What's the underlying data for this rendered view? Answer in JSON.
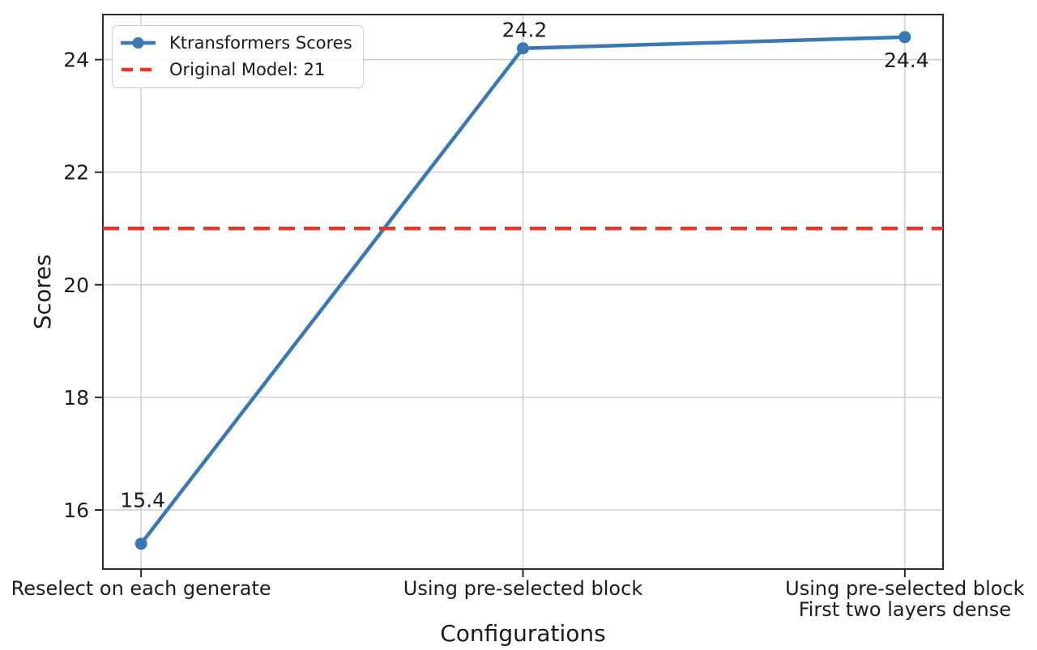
{
  "figure": {
    "background": "#ffffff",
    "text_color": "#1c1c1c",
    "grid_color": "#cccccc",
    "spine_color": "#2b2b2b"
  },
  "chart_data": {
    "type": "line",
    "title": "",
    "xlabel": "Configurations",
    "ylabel": "Scores",
    "categories": [
      "Reselect on each generate",
      "Using pre-selected block",
      "Using pre-selected block\nFirst two layers dense"
    ],
    "series": [
      {
        "name": "Ktransformers Scores",
        "color": "#3878b4",
        "marker": "circle",
        "linestyle": "solid",
        "values": [
          15.4,
          24.2,
          24.4
        ]
      }
    ],
    "point_labels": [
      "15.4",
      "24.2",
      "24.4"
    ],
    "point_label_positions": [
      "above",
      "above",
      "below"
    ],
    "reference_line": {
      "label": "Original Model: 21",
      "value": 21,
      "color": "#e93528",
      "linestyle": "dashed"
    },
    "yticks": [
      16,
      18,
      20,
      22,
      24
    ],
    "ylim": [
      14.95,
      24.8
    ],
    "xlim": [
      -0.1,
      2.1
    ],
    "grid": true,
    "legend_position": "upper-left"
  }
}
